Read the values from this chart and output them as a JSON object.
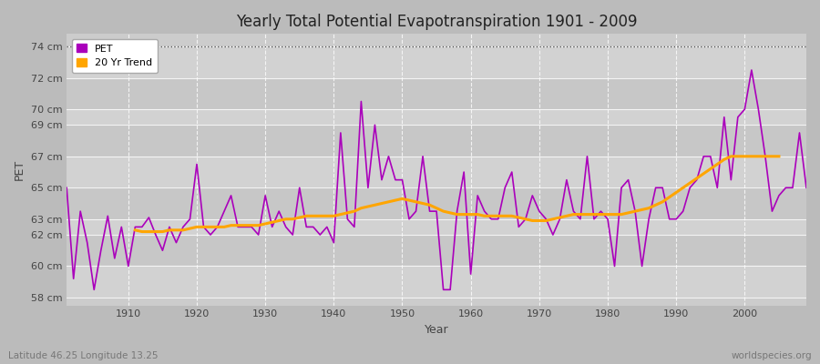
{
  "title": "Yearly Total Potential Evapotranspiration 1901 - 2009",
  "xlabel": "Year",
  "ylabel": "PET",
  "subtitle_left": "Latitude 46.25 Longitude 13.25",
  "subtitle_right": "worldspecies.org",
  "pet_color": "#aa00bb",
  "trend_color": "#FFA500",
  "fig_bg_color": "#c8c8c8",
  "plot_bg_color": "#d0d0d0",
  "ylim_min": 57.5,
  "ylim_max": 74.8,
  "yticks": [
    58,
    60,
    62,
    63,
    65,
    67,
    69,
    70,
    72,
    74
  ],
  "ytick_labels": [
    "58 cm",
    "60 cm",
    "62 cm",
    "63 cm",
    "65 cm",
    "67 cm",
    "69 cm",
    "70 cm",
    "72 cm",
    "74 cm"
  ],
  "xticks": [
    1910,
    1920,
    1930,
    1940,
    1950,
    1960,
    1970,
    1980,
    1990,
    2000
  ],
  "years": [
    1901,
    1902,
    1903,
    1904,
    1905,
    1906,
    1907,
    1908,
    1909,
    1910,
    1911,
    1912,
    1913,
    1914,
    1915,
    1916,
    1917,
    1918,
    1919,
    1920,
    1921,
    1922,
    1923,
    1924,
    1925,
    1926,
    1927,
    1928,
    1929,
    1930,
    1931,
    1932,
    1933,
    1934,
    1935,
    1936,
    1937,
    1938,
    1939,
    1940,
    1941,
    1942,
    1943,
    1944,
    1945,
    1946,
    1947,
    1948,
    1949,
    1950,
    1951,
    1952,
    1953,
    1954,
    1955,
    1956,
    1957,
    1958,
    1959,
    1960,
    1961,
    1962,
    1963,
    1964,
    1965,
    1966,
    1967,
    1968,
    1969,
    1970,
    1971,
    1972,
    1973,
    1974,
    1975,
    1976,
    1977,
    1978,
    1979,
    1980,
    1981,
    1982,
    1983,
    1984,
    1985,
    1986,
    1987,
    1988,
    1989,
    1990,
    1991,
    1992,
    1993,
    1994,
    1995,
    1996,
    1997,
    1998,
    1999,
    2000,
    2001,
    2002,
    2003,
    2004,
    2005,
    2006,
    2007,
    2008,
    2009
  ],
  "pet_values": [
    65.0,
    59.2,
    63.5,
    61.5,
    58.5,
    61.0,
    63.2,
    60.5,
    62.5,
    60.0,
    62.5,
    62.5,
    63.1,
    62.0,
    61.0,
    62.5,
    61.5,
    62.5,
    63.0,
    66.5,
    62.5,
    62.0,
    62.5,
    63.5,
    64.5,
    62.5,
    62.5,
    62.5,
    62.0,
    64.5,
    62.5,
    63.5,
    62.5,
    62.0,
    65.0,
    62.5,
    62.5,
    62.0,
    62.5,
    61.5,
    68.5,
    63.0,
    62.5,
    70.5,
    65.0,
    69.0,
    65.5,
    67.0,
    65.5,
    65.5,
    63.0,
    63.5,
    67.0,
    63.5,
    63.5,
    58.5,
    58.5,
    63.5,
    66.0,
    59.5,
    64.5,
    63.5,
    63.0,
    63.0,
    65.0,
    66.0,
    62.5,
    63.0,
    64.5,
    63.5,
    63.0,
    62.0,
    63.0,
    65.5,
    63.5,
    63.0,
    67.0,
    63.0,
    63.5,
    63.0,
    60.0,
    65.0,
    65.5,
    63.5,
    60.0,
    63.0,
    65.0,
    65.0,
    63.0,
    63.0,
    63.5,
    65.0,
    65.5,
    67.0,
    67.0,
    65.0,
    69.5,
    65.5,
    69.5,
    70.0,
    72.5,
    70.0,
    67.0,
    63.5,
    64.5,
    65.0,
    65.0,
    68.5,
    65.0
  ],
  "trend_values": [
    null,
    null,
    null,
    null,
    null,
    null,
    null,
    null,
    null,
    null,
    62.3,
    62.2,
    62.2,
    62.2,
    62.2,
    62.3,
    62.3,
    62.3,
    62.4,
    62.5,
    62.5,
    62.5,
    62.5,
    62.5,
    62.6,
    62.6,
    62.6,
    62.6,
    62.6,
    62.7,
    62.8,
    62.9,
    63.0,
    63.0,
    63.1,
    63.2,
    63.2,
    63.2,
    63.2,
    63.2,
    63.3,
    63.4,
    63.5,
    63.7,
    63.8,
    63.9,
    64.0,
    64.1,
    64.2,
    64.3,
    64.2,
    64.1,
    64.0,
    63.9,
    63.7,
    63.5,
    63.4,
    63.3,
    63.3,
    63.3,
    63.3,
    63.2,
    63.2,
    63.2,
    63.2,
    63.2,
    63.1,
    63.0,
    62.9,
    62.9,
    62.9,
    63.0,
    63.1,
    63.2,
    63.3,
    63.3,
    63.3,
    63.3,
    63.3,
    63.3,
    63.3,
    63.3,
    63.4,
    63.5,
    63.6,
    63.7,
    63.9,
    64.1,
    64.4,
    64.7,
    65.0,
    65.3,
    65.6,
    65.9,
    66.2,
    66.5,
    66.8,
    67.0,
    67.0,
    67.0,
    67.0,
    67.0,
    67.0,
    67.0,
    67.0
  ]
}
